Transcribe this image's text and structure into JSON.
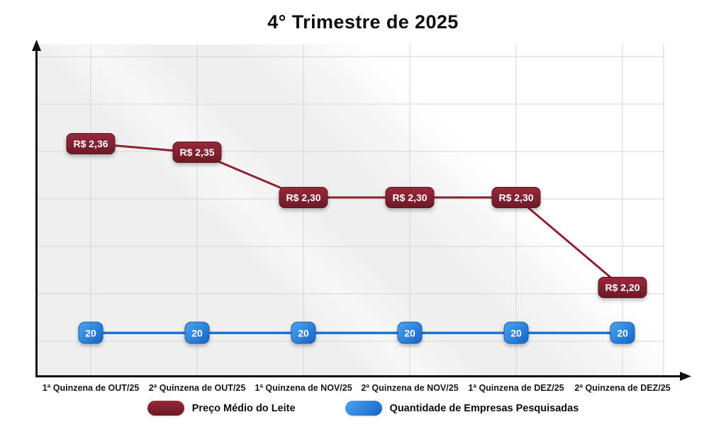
{
  "colors": {
    "page_background": "#ffffff",
    "plot_background": "#f0efef",
    "gridline": "#d6d4d4",
    "axis": "#111111",
    "price_line": "#8b2332",
    "price_badge_top": "#97283b",
    "price_badge_bottom": "#6d1a26",
    "count_line": "#1b74d6",
    "count_badge_top": "#4aa4ee",
    "count_badge_bottom": "#1565c8",
    "badge_text": "#ffffff",
    "xlabel_text": "#161616"
  },
  "chart_data": {
    "type": "line",
    "title": "4° Trimestre de 2025",
    "categories": [
      "1ª Quinzena de OUT/25",
      "2ª Quinzena de OUT/25",
      "1ª Quinzena de NOV/25",
      "2ª Quinzena de NOV/25",
      "1ª Quinzena de DEZ/25",
      "2ª Quinzena de DEZ/25"
    ],
    "series": [
      {
        "name": "Preço Médio do Leite",
        "values": [
          2.36,
          2.35,
          2.3,
          2.3,
          2.3,
          2.2
        ],
        "point_labels": [
          "R$ 2,36",
          "R$ 2,35",
          "R$ 2,30",
          "R$ 2,30",
          "R$ 2,30",
          "R$ 2,20"
        ],
        "color": "#8b2332",
        "axis_range": [
          2.1,
          2.47
        ]
      },
      {
        "name": "Quantidade de Empresas Pesquisadas",
        "values": [
          20,
          20,
          20,
          20,
          20,
          20
        ],
        "point_labels": [
          "20",
          "20",
          "20",
          "20",
          "20",
          "20"
        ],
        "color": "#1b74d6",
        "axis_range": [
          0,
          150
        ]
      }
    ],
    "xlabel": "",
    "ylabel": "",
    "grid": true,
    "y_tick_labels_visible": false,
    "axis_arrows": true,
    "legend_position": "bottom"
  }
}
